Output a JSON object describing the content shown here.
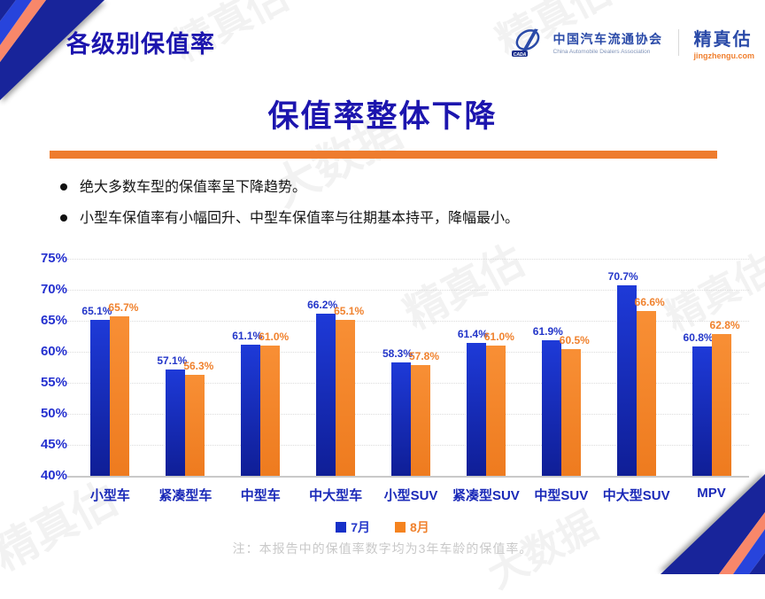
{
  "header": {
    "section_title": "各级别保值率",
    "logo": {
      "org_cn": "中国汽车流通协会",
      "org_en": "China Automobile Dealers Association",
      "brand": "精真估",
      "brand_site": "jingzhengu.com"
    }
  },
  "main": {
    "title": "保值率整体下降",
    "bullets": [
      "绝大多数车型的保值率呈下降趋势。",
      "小型车保值率有小幅回升、中型车保值率与往期基本持平，降幅最小。"
    ],
    "note": "注：本报告中的保值率数字均为3年车龄的保值率。"
  },
  "chart_data": {
    "type": "bar",
    "title": "保值率整体下降",
    "categories": [
      "小型车",
      "紧凑型车",
      "中型车",
      "中大型车",
      "小型SUV",
      "紧凑型SUV",
      "中型SUV",
      "中大型SUV",
      "MPV"
    ],
    "series": [
      {
        "name": "7月",
        "color": "#1630c8",
        "color_top": "#1e3ad8",
        "color_bottom": "#0f1e96",
        "label_color": "#2336c9",
        "values": [
          65.1,
          57.1,
          61.1,
          66.2,
          58.3,
          61.4,
          61.9,
          70.7,
          60.8
        ]
      },
      {
        "name": "8月",
        "color": "#f5831f",
        "color_top": "#f88f35",
        "color_bottom": "#ee7b1f",
        "label_color": "#f0822e",
        "values": [
          65.7,
          56.3,
          61.0,
          65.1,
          57.8,
          61.0,
          60.5,
          66.6,
          62.8
        ]
      }
    ],
    "ylim": [
      40,
      75
    ],
    "yticks": [
      40,
      45,
      50,
      55,
      60,
      65,
      70,
      75
    ],
    "ytick_suffix": "%",
    "value_label_suffix": "%",
    "grid": "dotted-horizontal",
    "legend_position": "bottom"
  },
  "watermarks": [
    "精真估",
    "精真估",
    "大数据",
    "精真估",
    "精真估",
    "精真估",
    "大数据"
  ],
  "colors": {
    "title_blue": "#1c15ae",
    "divider_orange": "#ee7c2e",
    "axis_blue": "#2531cf",
    "category_blue": "#1b2ab8",
    "note_gray": "#c9c9c9",
    "deco_navy": "#18249a",
    "deco_blue": "#2744dc",
    "deco_salmon": "#f8876a"
  }
}
